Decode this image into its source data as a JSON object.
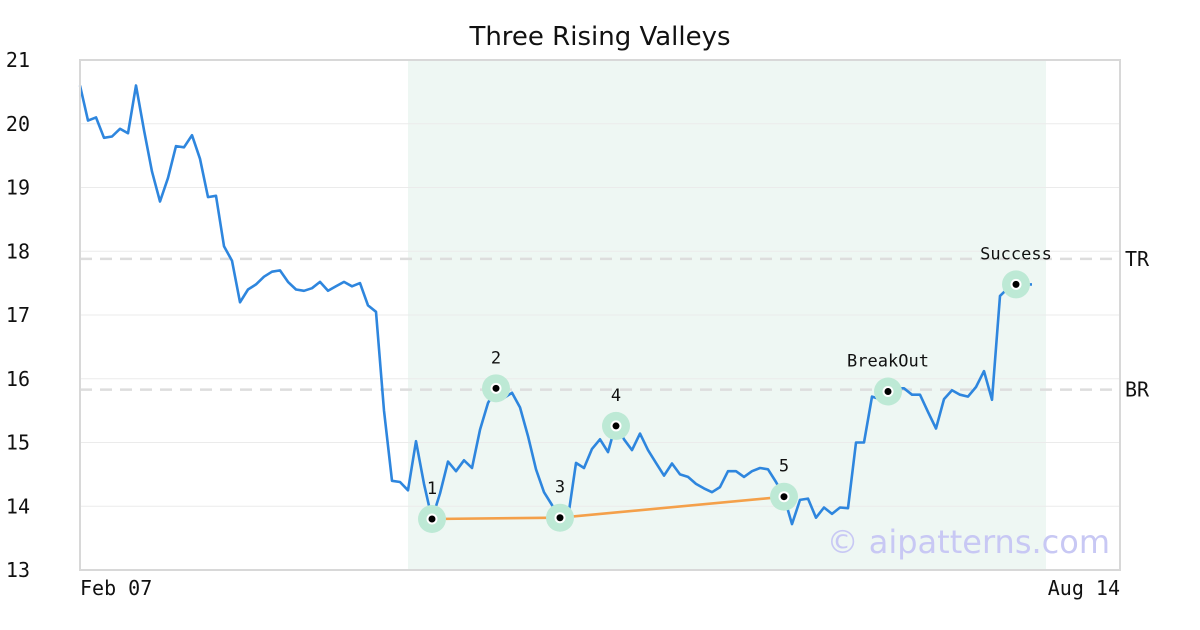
{
  "chart_data": {
    "type": "line",
    "title": "Three Rising Valleys",
    "xlabel": "",
    "ylabel": "",
    "ylim": [
      13,
      21
    ],
    "x_tick_labels": [
      "Feb 07",
      "Aug 14"
    ],
    "y_ticks": [
      13,
      14,
      15,
      16,
      17,
      18,
      19,
      20,
      21
    ],
    "grid": "horizontal",
    "series": [
      {
        "color": "#2e86de",
        "values": [
          20.6,
          20.05,
          20.1,
          19.78,
          19.8,
          19.92,
          19.85,
          20.6,
          19.9,
          19.25,
          18.78,
          19.15,
          19.65,
          19.63,
          19.82,
          19.45,
          18.85,
          18.87,
          18.08,
          17.85,
          17.2,
          17.4,
          17.48,
          17.6,
          17.68,
          17.7,
          17.52,
          17.4,
          17.38,
          17.42,
          17.52,
          17.38,
          17.45,
          17.52,
          17.45,
          17.5,
          17.15,
          17.05,
          15.5,
          14.4,
          14.38,
          14.25,
          15.02,
          14.35,
          13.8,
          14.2,
          14.7,
          14.55,
          14.72,
          14.6,
          15.2,
          15.62,
          15.85,
          15.7,
          15.78,
          15.55,
          15.1,
          14.58,
          14.22,
          14.02,
          13.8,
          13.82,
          14.68,
          14.6,
          14.9,
          15.05,
          14.85,
          15.3,
          15.05,
          14.88,
          15.14,
          14.88,
          14.68,
          14.48,
          14.67,
          14.5,
          14.46,
          14.35,
          14.28,
          14.22,
          14.3,
          14.55,
          14.55,
          14.46,
          14.55,
          14.6,
          14.58,
          14.38,
          14.15,
          13.72,
          14.1,
          14.12,
          13.82,
          13.98,
          13.88,
          13.98,
          13.97,
          15.0,
          15.0,
          15.72,
          15.68,
          15.8,
          15.85,
          15.85,
          15.75,
          15.75,
          15.48,
          15.22,
          15.68,
          15.82,
          15.75,
          15.72,
          15.87,
          16.12,
          15.67,
          17.3,
          17.42,
          17.48,
          17.48,
          17.48
        ]
      },
      {
        "color": "#f4a04a",
        "x": [
          44,
          60,
          88
        ],
        "values": [
          13.8,
          13.82,
          14.15
        ]
      }
    ],
    "points": [
      {
        "label": "1",
        "x": 44,
        "y": 13.8
      },
      {
        "label": "2",
        "x": 52,
        "y": 15.85
      },
      {
        "label": "3",
        "x": 60,
        "y": 13.82
      },
      {
        "label": "4",
        "x": 67,
        "y": 15.26
      },
      {
        "label": "5",
        "x": 88,
        "y": 14.15
      },
      {
        "label": "BreakOut",
        "x": 101,
        "y": 15.8
      },
      {
        "label": "Success",
        "x": 117,
        "y": 17.48
      }
    ],
    "pattern_x_range": [
      42,
      119
    ],
    "levels": [
      {
        "label": "TR",
        "value": 17.88
      },
      {
        "label": "BR",
        "value": 15.83
      }
    ]
  },
  "colors": {
    "price_line": "#2e86de",
    "valley_line": "#f4a04a",
    "marker_halo": "#bde9d5",
    "pattern_band": "#eef7f3",
    "level_line": "#dddddd"
  },
  "watermark": "© aipatterns.com"
}
